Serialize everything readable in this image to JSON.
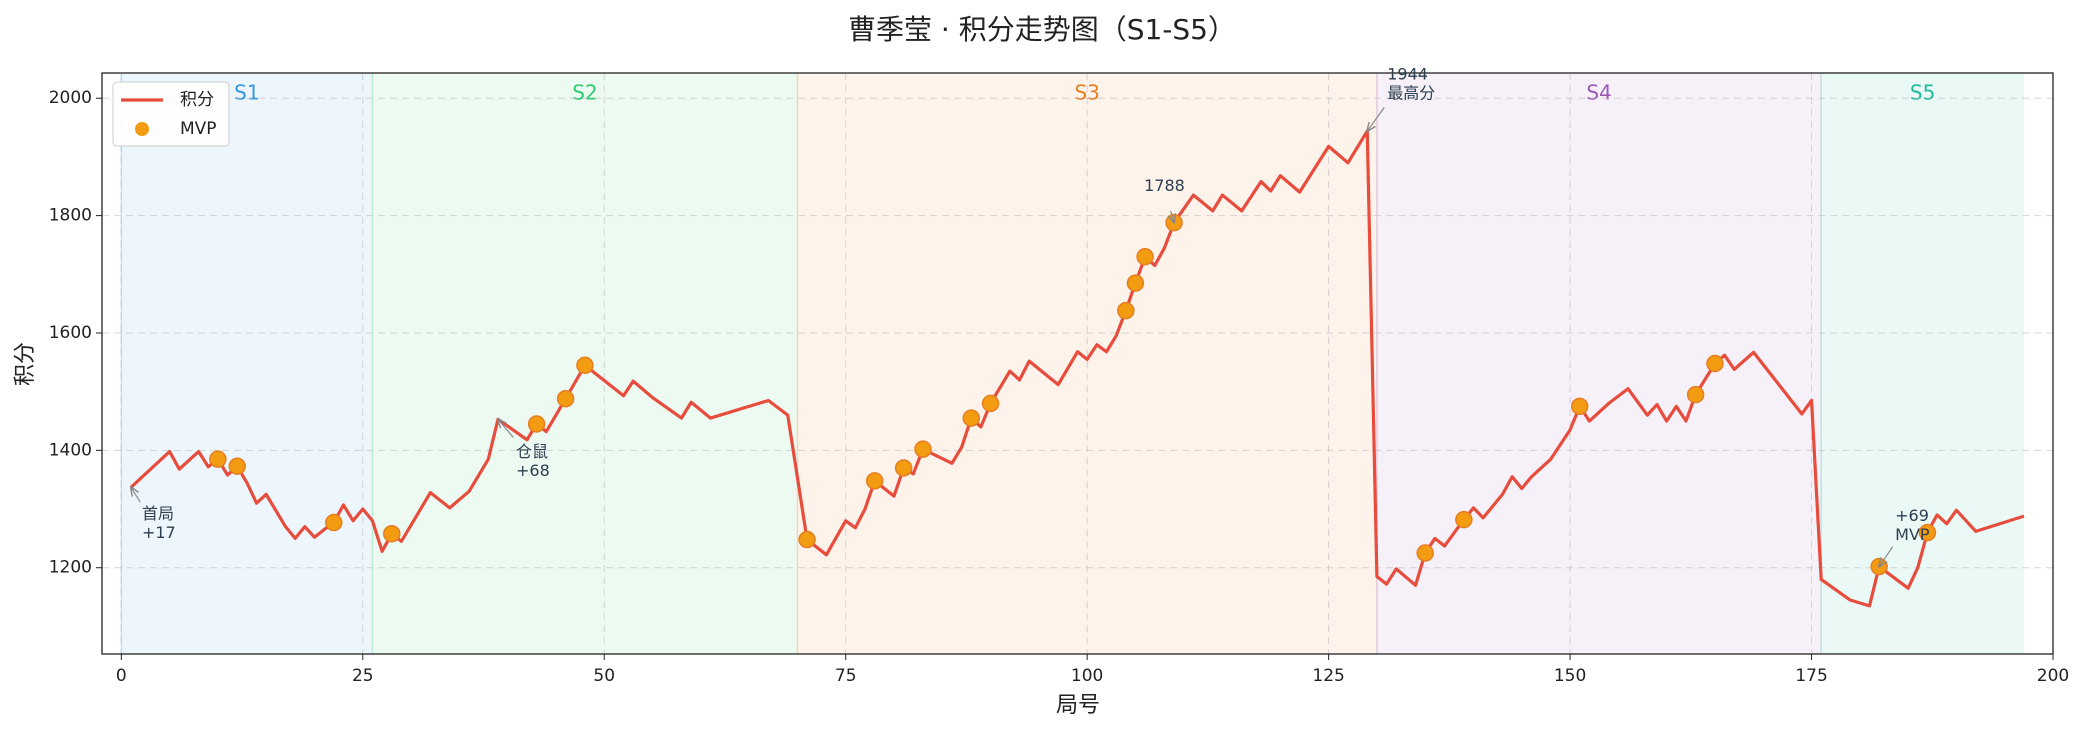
{
  "chart_data": {
    "type": "line",
    "title": "曹季莹 · 积分走势图（S1-S5）",
    "x_label": "局号",
    "y_label": "积分",
    "xlim": [
      -2,
      200
    ],
    "ylim": [
      1053,
      2043
    ],
    "xticks": [
      0,
      25,
      50,
      75,
      100,
      125,
      150,
      175,
      200
    ],
    "yticks": [
      1200,
      1400,
      1600,
      1800,
      2000
    ],
    "grid": true,
    "legend": "upper left",
    "seasons": [
      {
        "name": "S1",
        "start": 0,
        "end": 26,
        "color": "#3498db"
      },
      {
        "name": "S2",
        "start": 26,
        "end": 70,
        "color": "#2ecc71"
      },
      {
        "name": "S3",
        "start": 70,
        "end": 130,
        "color": "#e67e22"
      },
      {
        "name": "S4",
        "start": 130,
        "end": 176,
        "color": "#9b59b6"
      },
      {
        "name": "S5",
        "start": 176,
        "end": 197,
        "color": "#1abc9c"
      }
    ],
    "series": [
      {
        "name": "积分",
        "color": "#e74c3c",
        "kind": "line",
        "x": [
          1,
          5,
          6,
          8,
          9,
          10,
          11,
          12,
          13,
          14,
          15,
          17,
          18,
          19,
          20,
          21,
          22,
          23,
          24,
          25,
          26,
          27,
          28,
          29,
          32,
          34,
          36,
          38,
          39,
          42,
          43,
          44,
          46,
          48,
          52,
          53,
          55,
          58,
          59,
          61,
          67,
          69,
          71,
          73,
          75,
          76,
          77,
          78,
          80,
          81,
          82,
          83,
          86,
          87,
          88,
          89,
          90,
          92,
          93,
          94,
          97,
          99,
          100,
          101,
          102,
          103,
          104,
          105,
          106,
          107,
          108,
          109,
          111,
          113,
          114,
          116,
          118,
          119,
          120,
          122,
          125,
          127,
          129,
          130,
          131,
          132,
          134,
          135,
          136,
          137,
          139,
          140,
          141,
          143,
          144,
          145,
          146,
          148,
          150,
          151,
          152,
          154,
          156,
          158,
          159,
          160,
          161,
          162,
          163,
          165,
          166,
          167,
          169,
          171,
          174,
          175,
          176,
          179,
          181,
          182,
          185,
          186,
          187,
          188,
          189,
          190,
          192,
          197
        ],
        "values": [
          1337,
          1398,
          1368,
          1398,
          1372,
          1385,
          1358,
          1373,
          1345,
          1310,
          1325,
          1270,
          1250,
          1270,
          1252,
          1265,
          1277,
          1307,
          1280,
          1300,
          1280,
          1228,
          1258,
          1245,
          1328,
          1302,
          1330,
          1385,
          1453,
          1418,
          1445,
          1432,
          1488,
          1545,
          1493,
          1518,
          1490,
          1455,
          1482,
          1455,
          1485,
          1460,
          1248,
          1222,
          1280,
          1268,
          1300,
          1348,
          1322,
          1370,
          1360,
          1402,
          1378,
          1405,
          1455,
          1440,
          1480,
          1535,
          1520,
          1552,
          1512,
          1568,
          1555,
          1580,
          1568,
          1595,
          1638,
          1685,
          1730,
          1715,
          1745,
          1788,
          1835,
          1808,
          1835,
          1808,
          1858,
          1842,
          1868,
          1840,
          1918,
          1890,
          1944,
          1185,
          1172,
          1198,
          1170,
          1225,
          1250,
          1237,
          1282,
          1302,
          1285,
          1325,
          1355,
          1335,
          1355,
          1385,
          1435,
          1475,
          1450,
          1480,
          1505,
          1460,
          1478,
          1450,
          1475,
          1450,
          1495,
          1548,
          1562,
          1538,
          1567,
          1525,
          1462,
          1485,
          1180,
          1145,
          1135,
          1202,
          1165,
          1200,
          1260,
          1290,
          1275,
          1298,
          1262,
          1288
        ]
      },
      {
        "name": "MVP",
        "color": "#f39c12",
        "kind": "scatter",
        "x": [
          10,
          12,
          22,
          28,
          43,
          46,
          48,
          71,
          78,
          81,
          83,
          88,
          90,
          104,
          105,
          106,
          109,
          135,
          139,
          151,
          163,
          165,
          182,
          187
        ],
        "values": [
          1385,
          1373,
          1277,
          1258,
          1445,
          1488,
          1545,
          1248,
          1348,
          1370,
          1402,
          1455,
          1480,
          1638,
          1685,
          1730,
          1788,
          1225,
          1282,
          1475,
          1495,
          1548,
          1202,
          1260
        ]
      }
    ],
    "annotations": [
      {
        "lines": [
          "首局",
          "+17"
        ],
        "x": 1,
        "y": 1337
      },
      {
        "lines": [
          "仓鼠",
          "+68"
        ],
        "x": 39,
        "y": 1453
      },
      {
        "lines": [
          "1788"
        ],
        "x": 109,
        "y": 1788
      },
      {
        "lines": [
          "1944",
          "最高分"
        ],
        "x": 129,
        "y": 1944
      },
      {
        "lines": [
          "+69",
          "MVP"
        ],
        "x": 182,
        "y": 1202
      }
    ]
  }
}
